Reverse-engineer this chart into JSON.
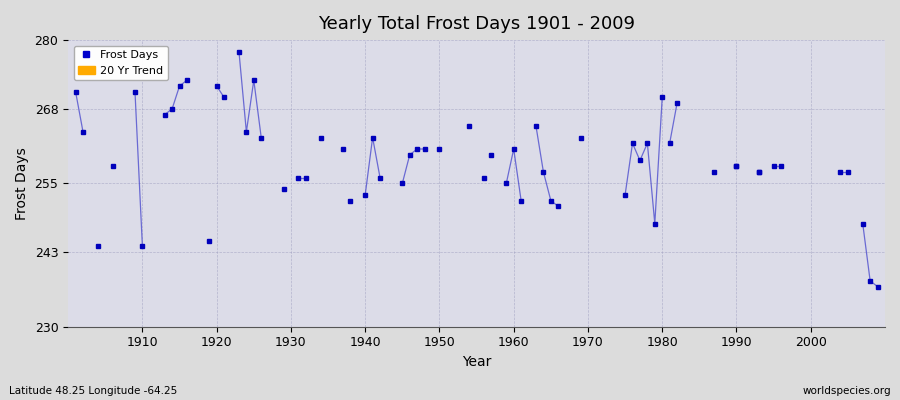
{
  "title": "Yearly Total Frost Days 1901 - 2009",
  "xlabel": "Year",
  "ylabel": "Frost Days",
  "bottom_left_label": "Latitude 48.25 Longitude -64.25",
  "bottom_right_label": "worldspecies.org",
  "ylim": [
    230,
    280
  ],
  "yticks": [
    230,
    243,
    255,
    268,
    280
  ],
  "bg_color": "#dcdcdc",
  "plot_bg_color": "#dcdce8",
  "line_color": "#4444cc",
  "marker_color": "#0000bb",
  "legend_frost_color": "#0000cc",
  "legend_trend_color": "#ffaa00",
  "years": [
    1901,
    1902,
    1904,
    1906,
    1909,
    1910,
    1913,
    1914,
    1915,
    1916,
    1919,
    1920,
    1921,
    1923,
    1924,
    1925,
    1926,
    1929,
    1931,
    1932,
    1934,
    1937,
    1938,
    1940,
    1941,
    1942,
    1945,
    1946,
    1947,
    1948,
    1950,
    1954,
    1956,
    1957,
    1959,
    1960,
    1961,
    1963,
    1964,
    1965,
    1966,
    1969,
    1975,
    1976,
    1977,
    1978,
    1979,
    1980,
    1981,
    1982,
    1987,
    1990,
    1993,
    1995,
    1996,
    2004,
    2005,
    2007,
    2008,
    2009
  ],
  "frost_days": [
    271,
    264,
    244,
    258,
    271,
    244,
    267,
    268,
    272,
    273,
    245,
    272,
    270,
    278,
    264,
    273,
    263,
    254,
    256,
    256,
    263,
    261,
    252,
    253,
    263,
    256,
    255,
    260,
    261,
    261,
    261,
    265,
    256,
    260,
    255,
    261,
    252,
    265,
    257,
    252,
    251,
    263,
    253,
    262,
    259,
    262,
    248,
    270,
    262,
    269,
    257,
    258,
    257,
    258,
    258,
    257,
    257,
    248,
    238,
    237
  ],
  "connected_segments": [
    [
      1901,
      1902
    ],
    [
      1909,
      1910
    ],
    [
      1913,
      1914,
      1915,
      1916
    ],
    [
      1920,
      1921
    ],
    [
      1923,
      1924,
      1925,
      1926
    ],
    [
      1931,
      1932
    ],
    [
      1940,
      1941,
      1942
    ],
    [
      1945,
      1946,
      1947,
      1948
    ],
    [
      1959,
      1960,
      1961
    ],
    [
      1963,
      1964,
      1965,
      1966
    ],
    [
      1975,
      1976,
      1977,
      1978,
      1979,
      1980
    ],
    [
      1981,
      1982
    ],
    [
      1990
    ],
    [
      1993
    ],
    [
      1995,
      1996
    ],
    [
      2004,
      2005
    ],
    [
      2007,
      2008,
      2009
    ]
  ]
}
